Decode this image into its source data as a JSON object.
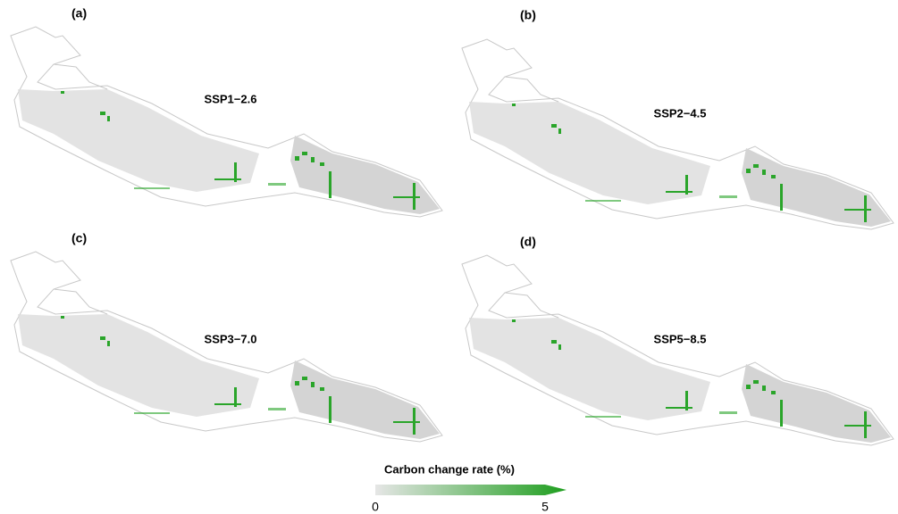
{
  "panels": [
    {
      "label": "(a)",
      "title": "SSP1−2.6"
    },
    {
      "label": "(b)",
      "title": "SSP2−4.5"
    },
    {
      "label": "(c)",
      "title": "SSP3−7.0"
    },
    {
      "label": "(d)",
      "title": "SSP5−8.5"
    }
  ],
  "legend": {
    "title": "Carbon change rate (%)",
    "lim": [
      0,
      5
    ],
    "ticks": [
      0,
      5
    ],
    "colors": [
      "#e6e6e6",
      "#1e9e1e"
    ]
  }
}
